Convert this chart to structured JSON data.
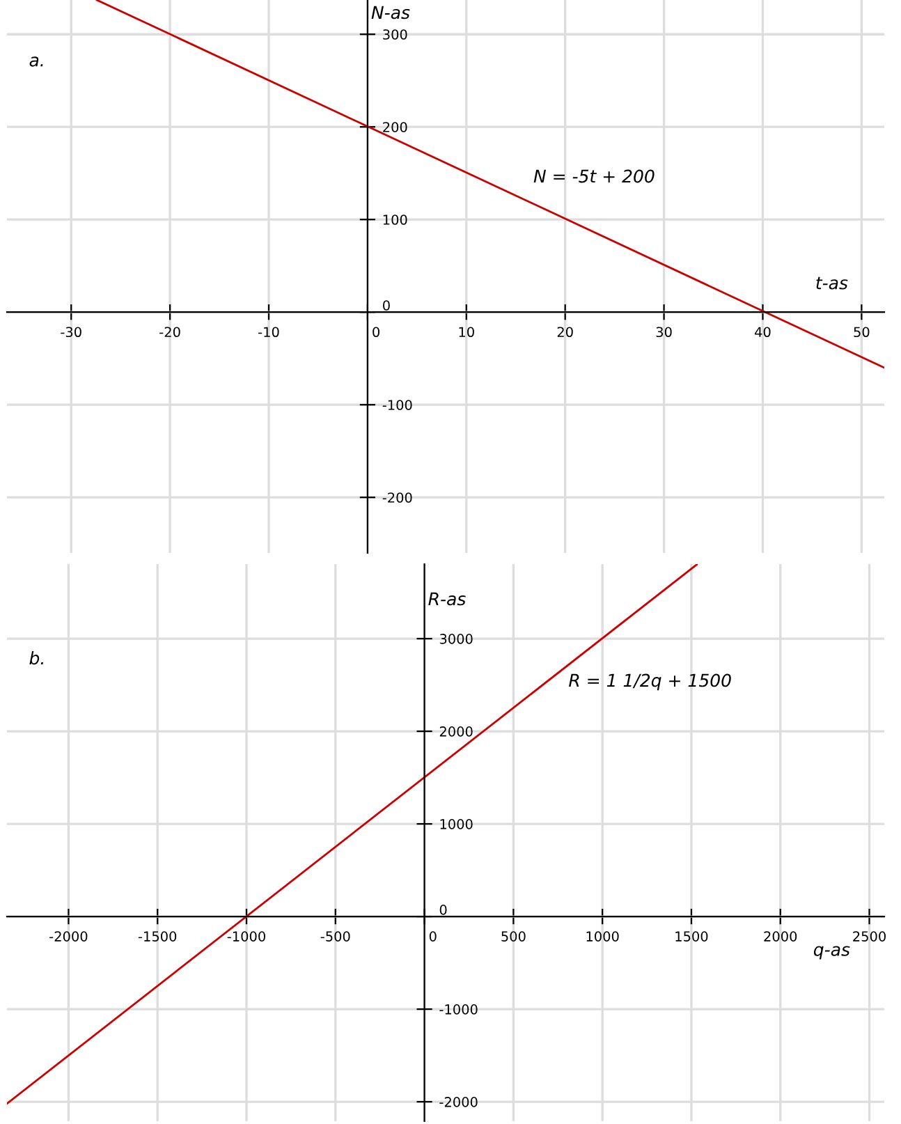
{
  "chart_data": [
    {
      "type": "line",
      "xlabel": "t-as",
      "ylabel": "N-as",
      "annotations": [
        "a.",
        "N = -5t + 200"
      ],
      "series": [
        {
          "color": "#cc0000",
          "x": [
            -27.4,
            52.3
          ],
          "values": [
            337,
            -60
          ]
        }
      ],
      "xlim": [
        -36.5,
        52.3
      ],
      "ylim": [
        -260,
        337
      ],
      "xticks": [
        -30,
        -20,
        -10,
        0,
        10,
        20,
        30,
        40,
        50
      ],
      "yticks": [
        -200,
        -100,
        0,
        100,
        200,
        300
      ],
      "grid": true,
      "legend": false,
      "marker": "none",
      "line_style": "solid"
    },
    {
      "type": "line",
      "xlabel": "q-as",
      "ylabel": "R-as",
      "annotations": [
        "b.",
        "R = 1 1/2q + 1500"
      ],
      "series": [
        {
          "color": "#cc0000",
          "x": [
            -2346,
            1530
          ],
          "values": [
            -2020,
            3800
          ]
        }
      ],
      "xlim": [
        -2346,
        2584
      ],
      "ylim": [
        -2210,
        3805
      ],
      "xticks": [
        -2000,
        -1500,
        -1000,
        -500,
        0,
        500,
        1000,
        1500,
        2000,
        2500
      ],
      "yticks": [
        -2000,
        -1000,
        0,
        1000,
        2000,
        3000
      ],
      "grid": true,
      "legend": false,
      "marker": "none",
      "line_style": "solid"
    }
  ]
}
